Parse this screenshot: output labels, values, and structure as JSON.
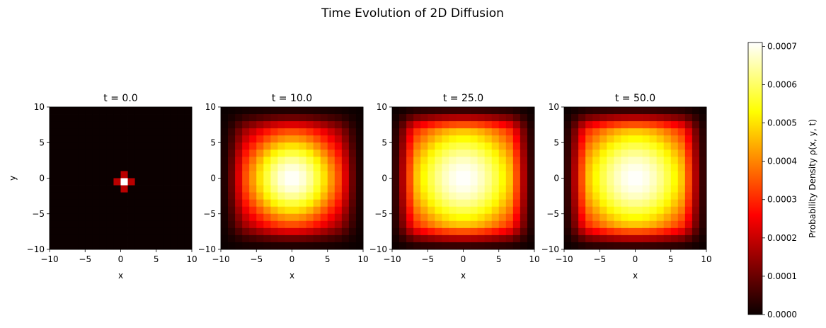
{
  "figure_title": "Time Evolution of 2D Diffusion",
  "chart_data": {
    "type": "heatmap",
    "colormap": "hot",
    "grid_size": [
      20,
      20
    ],
    "x_range": [
      -10,
      10
    ],
    "y_range": [
      -10,
      10
    ],
    "x_ticks": [
      "−10",
      "−5",
      "0",
      "5",
      "10"
    ],
    "y_ticks": [
      "−10",
      "−5",
      "0",
      "5",
      "10"
    ],
    "xlabel": "x",
    "ylabel": "y",
    "panels": [
      {
        "title": "t = 0.0",
        "peak_density": 0.00071,
        "profile": "point-source",
        "spread_sigma": 0.0
      },
      {
        "title": "t = 10.0",
        "peak_density": 0.00071,
        "profile": "gaussian",
        "spread_sigma": 5.4
      },
      {
        "title": "t = 25.0",
        "peak_density": 0.00071,
        "profile": "gaussian",
        "spread_sigma": 7.2
      },
      {
        "title": "t = 50.0",
        "peak_density": 0.00071,
        "profile": "gaussian",
        "spread_sigma": 7.2
      }
    ],
    "colorbar": {
      "label": "Probability Density ρ(x, y, t)",
      "min": 0.0,
      "max": 0.00071,
      "ticks": [
        "0.0000",
        "0.0001",
        "0.0002",
        "0.0003",
        "0.0004",
        "0.0005",
        "0.0006",
        "0.0007"
      ],
      "tick_values": [
        0,
        0.0001,
        0.0002,
        0.0003,
        0.0004,
        0.0005,
        0.0006,
        0.0007
      ]
    }
  }
}
